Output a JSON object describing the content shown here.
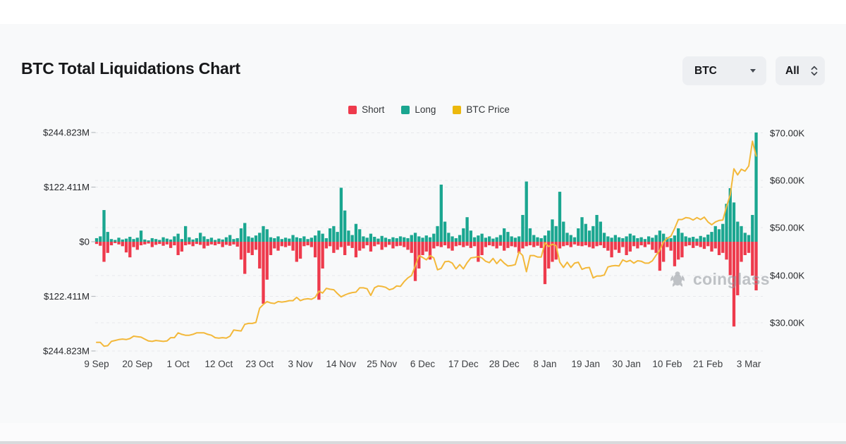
{
  "page": {
    "title": "BTC Total Liquidations Chart"
  },
  "controls": {
    "symbol_select": {
      "value": "BTC"
    },
    "range_select": {
      "value": "All"
    }
  },
  "legend": [
    {
      "label": "Short",
      "color": "#ee3a4c"
    },
    {
      "label": "Long",
      "color": "#1aa690"
    },
    {
      "label": "BTC Price",
      "color": "#ecb80d"
    }
  ],
  "watermark": {
    "text": "coinglass"
  },
  "chart_data": {
    "type": "bar",
    "subtype": "bidirectional-bars-with-price-line",
    "title": "BTC Total Liquidations Chart",
    "x_tick_labels": [
      "9 Sep",
      "20 Sep",
      "1 Oct",
      "12 Oct",
      "23 Oct",
      "3 Nov",
      "14 Nov",
      "25 Nov",
      "6 Dec",
      "17 Dec",
      "28 Dec",
      "8 Jan",
      "19 Jan",
      "30 Jan",
      "10 Feb",
      "21 Feb",
      "3 Mar"
    ],
    "x_tick_interval_days": 11,
    "left_axis": {
      "tick_labels": [
        "$244.823M",
        "$122.411M",
        "$0",
        "$122.411M",
        "$244.823M"
      ],
      "max_abs_musd": 244.823,
      "grid": true
    },
    "right_axis": {
      "tick_labels": [
        "$70.00K",
        "$60.00K",
        "$50.00K",
        "$40.00K",
        "$30.00K"
      ],
      "min_k": 30,
      "max_k": 70,
      "grid": true
    },
    "legend_position": "top-center",
    "series": [
      {
        "name": "Long",
        "type": "bar",
        "direction": "up",
        "color": "#1aa690",
        "unit": "M USD",
        "values": [
          8,
          12,
          71,
          22,
          6,
          4,
          9,
          5,
          7,
          11,
          6,
          9,
          25,
          5,
          3,
          8,
          6,
          4,
          10,
          7,
          5,
          12,
          18,
          6,
          35,
          10,
          5,
          8,
          20,
          12,
          6,
          9,
          4,
          7,
          5,
          10,
          15,
          6,
          8,
          30,
          42,
          12,
          9,
          14,
          20,
          35,
          28,
          10,
          8,
          12,
          6,
          9,
          7,
          15,
          10,
          8,
          12,
          6,
          9,
          14,
          25,
          18,
          8,
          30,
          35,
          22,
          121,
          70,
          25,
          15,
          40,
          28,
          12,
          9,
          18,
          11,
          7,
          13,
          9,
          6,
          10,
          8,
          12,
          10,
          8,
          15,
          20,
          12,
          9,
          14,
          10,
          18,
          35,
          128,
          45,
          20,
          12,
          8,
          15,
          30,
          55,
          25,
          10,
          14,
          18,
          9,
          12,
          7,
          10,
          15,
          30,
          22,
          12,
          9,
          12,
          60,
          135,
          30,
          15,
          10,
          8,
          14,
          25,
          50,
          35,
          112,
          45,
          20,
          15,
          10,
          30,
          55,
          40,
          25,
          35,
          60,
          45,
          20,
          12,
          9,
          15,
          10,
          8,
          12,
          18,
          14,
          8,
          10,
          6,
          12,
          9,
          15,
          25,
          18,
          10,
          8,
          14,
          30,
          20,
          12,
          9,
          11,
          7,
          13,
          10,
          16,
          22,
          35,
          28,
          40,
          85,
          120,
          88,
          45,
          35,
          20,
          15,
          60,
          244.8
        ]
      },
      {
        "name": "Short",
        "type": "bar",
        "direction": "down",
        "color": "#ee3a4c",
        "unit": "M USD",
        "values": [
          5,
          9,
          45,
          25,
          8,
          3,
          6,
          10,
          24,
          35,
          12,
          18,
          8,
          6,
          4,
          12,
          7,
          5,
          9,
          6,
          14,
          8,
          30,
          22,
          8,
          6,
          10,
          5,
          7,
          15,
          9,
          6,
          8,
          5,
          12,
          7,
          9,
          6,
          11,
          40,
          72,
          25,
          30,
          18,
          60,
          139,
          85,
          30,
          15,
          20,
          10,
          12,
          9,
          20,
          45,
          38,
          10,
          8,
          12,
          35,
          130,
          60,
          15,
          10,
          25,
          18,
          12,
          30,
          9,
          14,
          35,
          20,
          15,
          8,
          22,
          10,
          6,
          18,
          12,
          7,
          15,
          10,
          9,
          12,
          18,
          25,
          88,
          60,
          30,
          22,
          40,
          15,
          10,
          12,
          8,
          15,
          20,
          10,
          8,
          12,
          9,
          14,
          10,
          45,
          30,
          12,
          8,
          10,
          15,
          9,
          20,
          14,
          10,
          12,
          25,
          15,
          10,
          8,
          12,
          9,
          14,
          95,
          60,
          45,
          40,
          15,
          10,
          8,
          12,
          6,
          9,
          10,
          8,
          12,
          15,
          10,
          8,
          14,
          20,
          35,
          18,
          25,
          12,
          30,
          22,
          10,
          15,
          8,
          12,
          6,
          18,
          25,
          65,
          45,
          12,
          20,
          55,
          40,
          35,
          10,
          8,
          14,
          9,
          12,
          16,
          10,
          22,
          15,
          30,
          25,
          40,
          75,
          190,
          120,
          45,
          30,
          25,
          76,
          109
        ]
      },
      {
        "name": "BTC Price",
        "type": "line",
        "color": "#f3b83a",
        "unit": "K USD",
        "values": [
          25.9,
          25.9,
          25.1,
          25.2,
          26.1,
          26.3,
          26.5,
          26.6,
          26.5,
          26.7,
          27.2,
          27.1,
          27.0,
          26.6,
          26.2,
          26.1,
          26.3,
          26.2,
          26.1,
          26.2,
          26.9,
          26.9,
          27.9,
          27.6,
          27.4,
          27.4,
          27.6,
          27.9,
          27.9,
          27.9,
          27.6,
          27.4,
          26.9,
          26.8,
          26.9,
          26.8,
          27.2,
          28.5,
          28.4,
          28.3,
          29.7,
          29.9,
          29.9,
          30.1,
          33.1,
          33.9,
          34.5,
          34.2,
          34.1,
          34.5,
          34.4,
          34.5,
          34.7,
          34.7,
          35.4,
          34.7,
          35.0,
          35.1,
          35.0,
          35.4,
          36.7,
          36.3,
          37.3,
          37.1,
          37.0,
          36.2,
          35.5,
          35.9,
          36.2,
          36.4,
          36.5,
          37.4,
          37.4,
          37.2,
          35.8,
          37.4,
          37.8,
          37.7,
          37.5,
          37.0,
          37.2,
          37.8,
          37.7,
          38.7,
          39.5,
          40.0,
          42.0,
          44.2,
          43.8,
          43.3,
          44.2,
          43.7,
          41.2,
          41.5,
          42.9,
          43.0,
          42.6,
          41.4,
          42.3,
          41.4,
          42.7,
          43.7,
          43.8,
          44.0,
          43.7,
          43.0,
          42.7,
          43.6,
          42.5,
          43.4,
          42.6,
          42.0,
          42.1,
          42.3,
          45.0,
          44.2,
          40.8,
          44.2,
          44.2,
          43.9,
          43.9,
          46.9,
          46.1,
          46.6,
          46.3,
          42.8,
          41.7,
          42.8,
          41.7,
          42.6,
          42.8,
          41.3,
          41.6,
          41.7,
          39.5,
          39.9,
          39.9,
          40.1,
          41.8,
          42.0,
          42.1,
          42.0,
          43.3,
          42.9,
          43.2,
          42.6,
          43.1,
          43.0,
          42.6,
          42.6,
          43.1,
          44.3,
          45.3,
          47.1,
          47.8,
          48.3,
          49.9,
          51.8,
          51.8,
          52.2,
          52.1,
          51.7,
          52.2,
          51.8,
          52.3,
          51.3,
          50.7,
          51.3,
          51.6,
          51.7,
          54.5,
          57.0,
          62.5,
          61.2,
          62.4,
          62.0,
          63.1,
          68.3,
          65.2
        ]
      }
    ]
  }
}
